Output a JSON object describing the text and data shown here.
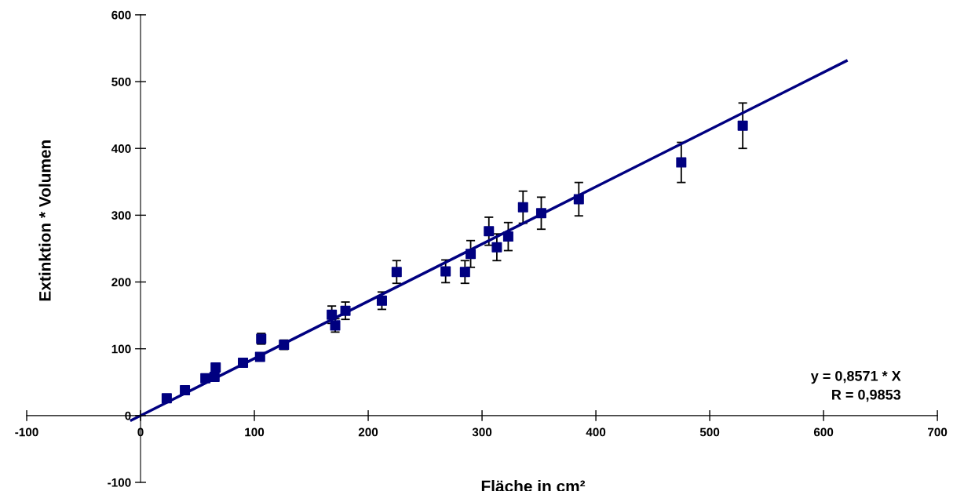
{
  "chart_data": {
    "type": "scatter",
    "xlabel": "Fläche in cm²",
    "ylabel": "Extinktion * Volumen",
    "xlim": [
      -100,
      700
    ],
    "ylim": [
      -100,
      600
    ],
    "xticks": [
      -100,
      0,
      100,
      200,
      300,
      400,
      500,
      600,
      700
    ],
    "yticks": [
      -100,
      0,
      100,
      200,
      300,
      400,
      500,
      600
    ],
    "grid": false,
    "series": [
      {
        "marker": "square",
        "color": "#000080",
        "x": [
          23,
          39,
          57,
          65,
          66,
          90,
          105,
          106,
          126,
          168,
          171,
          180,
          212,
          225,
          268,
          285,
          290,
          306,
          313,
          323,
          336,
          352,
          385,
          475,
          529
        ],
        "values": [
          26,
          38,
          56,
          58,
          72,
          79,
          88,
          115,
          106,
          151,
          135,
          157,
          172,
          215,
          216,
          215,
          242,
          276,
          252,
          268,
          312,
          303,
          324,
          379,
          434
        ],
        "errors": [
          null,
          null,
          null,
          null,
          null,
          null,
          null,
          8,
          7,
          13,
          10,
          13,
          13,
          17,
          17,
          17,
          20,
          21,
          20,
          21,
          24,
          24,
          25,
          30,
          34
        ]
      },
      {
        "type": "line",
        "marker": "none",
        "color": "#000080",
        "x": [
          -8,
          620
        ],
        "values": [
          -7,
          531
        ]
      }
    ],
    "annotations": [
      "y = 0,8571 * X",
      "R = 0,9853"
    ]
  }
}
